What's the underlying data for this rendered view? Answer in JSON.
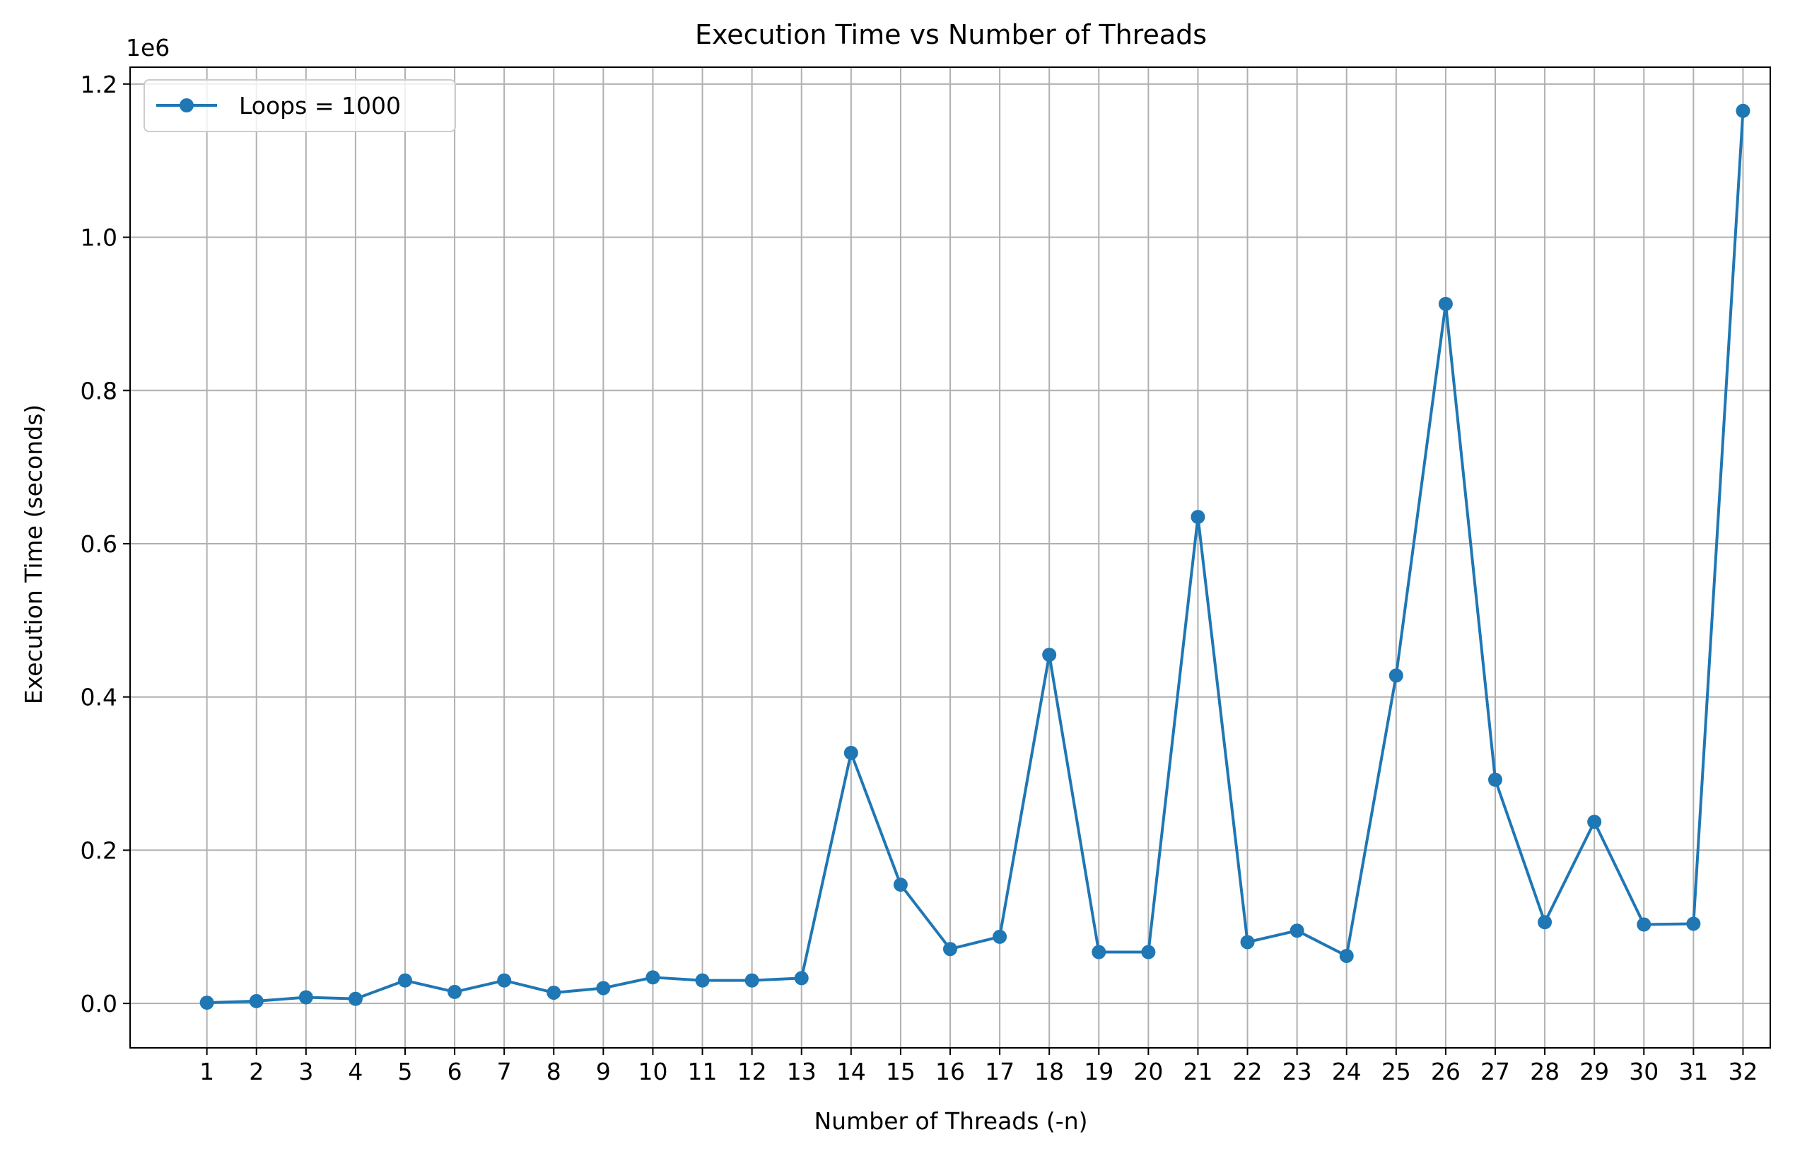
{
  "chart_data": {
    "type": "line",
    "title": "Execution Time vs Number of Threads",
    "xlabel": "Number of Threads (-n)",
    "ylabel": "Execution Time (seconds)",
    "y_offset_label": "1e6",
    "y_scale_factor": 1000000,
    "grid": true,
    "legend_position": "top-left",
    "xlim": [
      -0.55,
      32.55
    ],
    "ylim": [
      -58000,
      1222000
    ],
    "x_ticks": [
      "1",
      "2",
      "3",
      "4",
      "5",
      "6",
      "7",
      "8",
      "9",
      "10",
      "11",
      "12",
      "13",
      "14",
      "15",
      "16",
      "17",
      "18",
      "19",
      "20",
      "21",
      "22",
      "23",
      "24",
      "25",
      "26",
      "27",
      "28",
      "29",
      "30",
      "31",
      "32"
    ],
    "y_ticks": [
      {
        "value": 0,
        "label": "0.0"
      },
      {
        "value": 200000,
        "label": "0.2"
      },
      {
        "value": 400000,
        "label": "0.4"
      },
      {
        "value": 600000,
        "label": "0.6"
      },
      {
        "value": 800000,
        "label": "0.8"
      },
      {
        "value": 1000000,
        "label": "1.0"
      },
      {
        "value": 1200000,
        "label": "1.2"
      }
    ],
    "series": [
      {
        "name": "Loops = 1000",
        "color": "#1f77b4",
        "x": [
          1,
          2,
          3,
          4,
          5,
          6,
          7,
          8,
          9,
          10,
          11,
          12,
          13,
          14,
          15,
          16,
          17,
          18,
          19,
          20,
          21,
          22,
          23,
          24,
          25,
          26,
          27,
          28,
          29,
          30,
          31,
          32
        ],
        "values": [
          1000,
          3000,
          8000,
          6000,
          30000,
          15000,
          30000,
          14000,
          20000,
          34000,
          30000,
          30000,
          33000,
          327000,
          155000,
          71000,
          87000,
          455000,
          67000,
          67000,
          635000,
          80000,
          95000,
          62000,
          428000,
          913000,
          292000,
          106000,
          237000,
          103000,
          104000,
          1165000
        ]
      }
    ]
  }
}
